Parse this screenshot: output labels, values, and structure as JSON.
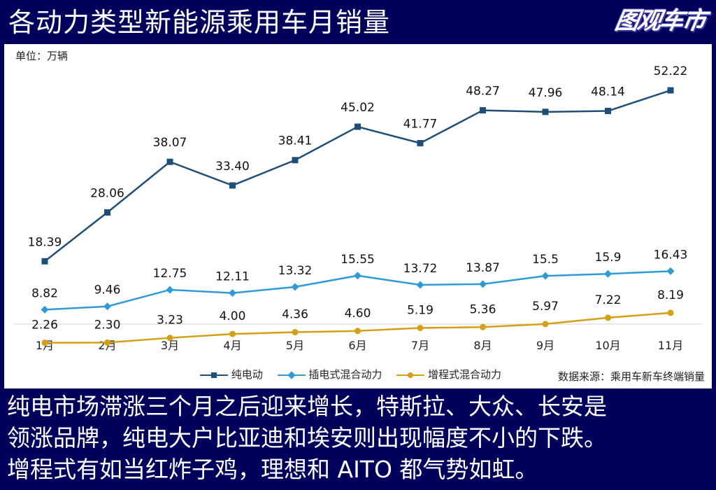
{
  "header": {
    "title": "各动力类型新能源乘用车月销量",
    "logo_text": "图观车市"
  },
  "panel": {
    "unit_label": "单位：万辆",
    "source_label": "数据来源：乘用车新车终端销量"
  },
  "colors": {
    "background": "#00005c",
    "bev": "#1f4e79",
    "phev": "#2e9bd6",
    "erev": "#d4a017"
  },
  "chart_data": {
    "type": "line",
    "title": "各动力类型新能源乘用车月销量",
    "xlabel": "",
    "ylabel": "单位：万辆",
    "categories": [
      "1月",
      "2月",
      "3月",
      "4月",
      "5月",
      "6月",
      "7月",
      "8月",
      "9月",
      "10月",
      "11月"
    ],
    "ylim": [
      0,
      55
    ],
    "grid": false,
    "legend": "bottom",
    "series": [
      {
        "name": "纯电动",
        "marker": "square",
        "values": [
          18.39,
          28.06,
          38.07,
          33.4,
          38.41,
          45.02,
          41.77,
          48.27,
          47.96,
          48.14,
          52.22
        ],
        "labels": [
          "18.39",
          "28.06",
          "38.07",
          "33.40",
          "38.41",
          "45.02",
          "41.77",
          "48.27",
          "47.96",
          "48.14",
          "52.22"
        ]
      },
      {
        "name": "插电式混合动力",
        "marker": "diamond",
        "values": [
          8.82,
          9.46,
          12.75,
          12.11,
          13.32,
          15.55,
          13.72,
          13.87,
          15.5,
          15.9,
          16.43
        ],
        "labels": [
          "8.82",
          "9.46",
          "12.75",
          "12.11",
          "13.32",
          "15.55",
          "13.72",
          "13.87",
          "15.5",
          "15.9",
          "16.43"
        ]
      },
      {
        "name": "增程式混合动力",
        "marker": "circle",
        "values": [
          2.26,
          2.3,
          3.23,
          4.0,
          4.36,
          4.6,
          5.19,
          5.36,
          5.97,
          7.22,
          8.19
        ],
        "labels": [
          "2.26",
          "2.30",
          "3.23",
          "4.00",
          "4.36",
          "4.60",
          "5.19",
          "5.36",
          "5.97",
          "7.22",
          "8.19"
        ]
      }
    ]
  },
  "caption": {
    "lines": [
      "纯电市场滞涨三个月之后迎来增长，特斯拉、大众、长安是",
      "领涨品牌，纯电大户比亚迪和埃安则出现幅度不小的下跌。",
      "增程式有如当红炸子鸡，理想和 AITO 都气势如虹。"
    ]
  }
}
